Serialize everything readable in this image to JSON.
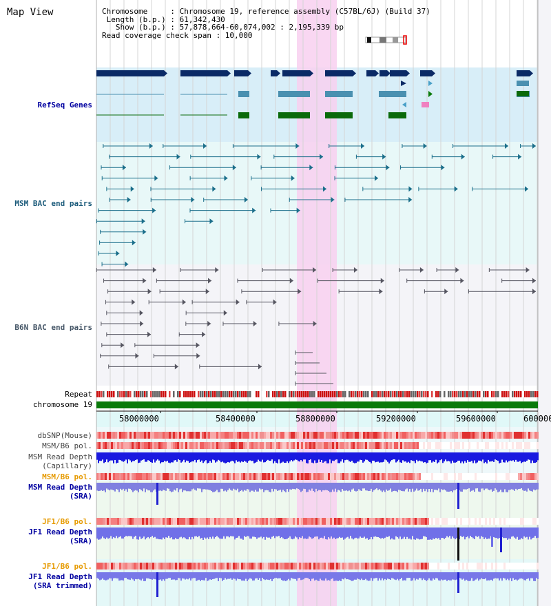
{
  "window": {
    "title": "Map View"
  },
  "info": {
    "chromosome_line": "Chromosome     : Chromosome 19, reference assembly (C57BL/6J) (Build 37)",
    "length_line": " Length (b.p.) : 61,342,430",
    "show_line": "   Show (b.p.) : 57,878,664-60,074,002 : 2,195,339 bp",
    "coverage_line": "Read coverage check span : 10,000"
  },
  "tracks": {
    "refseq": "RefSeq Genes",
    "msm_bac": "MSM BAC end pairs",
    "b6n_bac": "B6N BAC end pairs",
    "repeat": "Repeat",
    "chromosome": "chromosome 19",
    "dbsnp": "dbSNP(Mouse)",
    "msm_pol_capillary": "MSM/B6 pol.",
    "msm_depth_capillary_1": "MSM Read Depth",
    "msm_depth_capillary_2": "(Capillary)",
    "msm_pol_sra": "MSM/B6 pol.",
    "msm_depth_sra_1": "MSM Read Depth",
    "msm_depth_sra_2": "(SRA)",
    "jf1_pol_1": "JF1/B6 pol.",
    "jf1_depth_sra_1": "JF1 Read Depth",
    "jf1_depth_sra_2": "(SRA)",
    "jf1_pol_2": "JF1/B6 pol.",
    "jf1_depth_trim_1": "JF1 Read Depth",
    "jf1_depth_trim_2": "(SRA trimmed)"
  },
  "axis": {
    "ticks": [
      "58000000",
      "58400000",
      "58800000",
      "59200000",
      "59600000",
      "600000"
    ]
  },
  "colors": {
    "navy": "#0a2a66",
    "teal": "#1a6e8a",
    "refseq_teal": "#4a90b0",
    "green": "#0a6a0a",
    "highlight": "#f8d0f0",
    "msm_label": "#1a5a7a",
    "sra_label": "#0000a0",
    "pol_label": "#e69a00",
    "refseq_label": "#0000a0"
  }
}
